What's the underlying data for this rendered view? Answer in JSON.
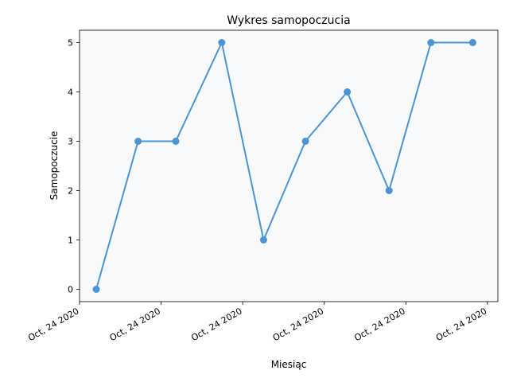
{
  "chart_data": {
    "type": "line",
    "title": "Wykres samopoczucia",
    "xlabel": "Miesiąc",
    "ylabel": "Samopoczucie",
    "ylim": [
      -0.25,
      5.25
    ],
    "yticks": [
      0,
      1,
      2,
      3,
      4,
      5
    ],
    "xtick_labels": [
      "Oct, 24 2020",
      "Oct, 24 2020",
      "Oct, 24 2020",
      "Oct, 24 2020",
      "Oct, 24 2020",
      "Oct, 24 2020"
    ],
    "x_positions": [
      0.04,
      0.14,
      0.23,
      0.34,
      0.44,
      0.54,
      0.64,
      0.74,
      0.84,
      0.94
    ],
    "values": [
      0,
      3,
      3,
      5,
      1,
      3,
      4,
      2,
      5,
      5
    ],
    "grid": false,
    "legend": "none",
    "line_color": "#4a96d4",
    "plot_background": "#f7f9fb"
  }
}
